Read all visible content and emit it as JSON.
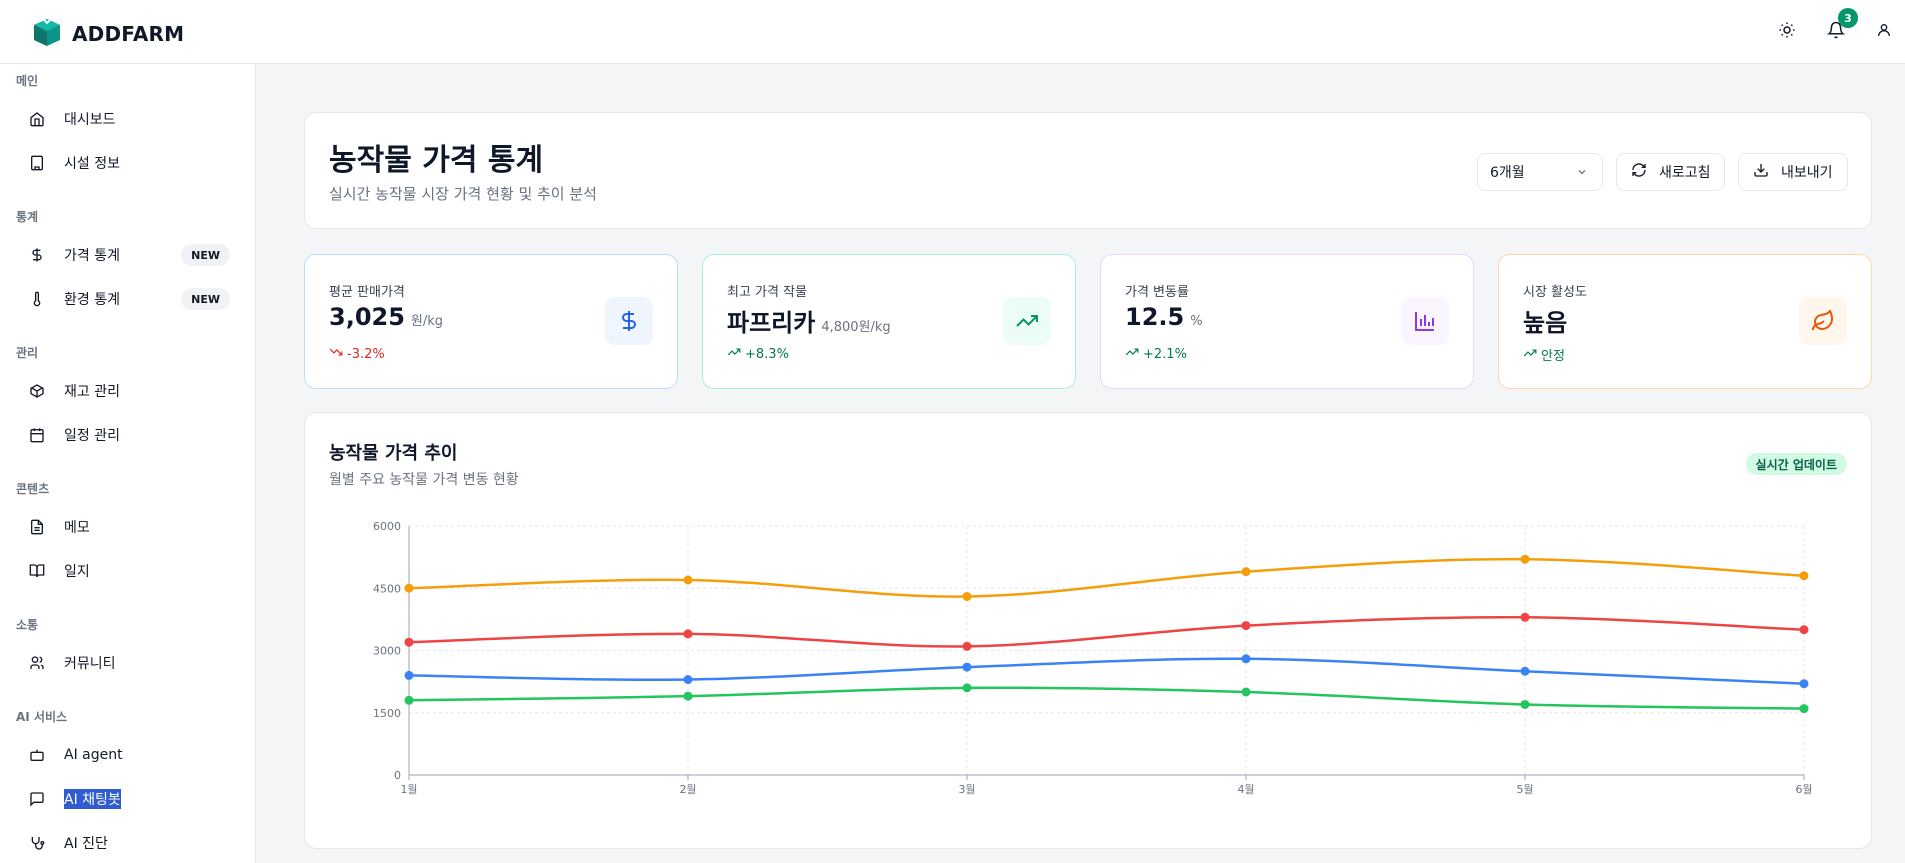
{
  "app": {
    "brand": "ADDFARM",
    "notifications_count": "3",
    "icons": [
      "box-logo-icon",
      "sun-icon",
      "bell-icon",
      "user-icon"
    ]
  },
  "sidebar": {
    "sections": [
      {
        "title": "메인",
        "items": [
          {
            "label": "대시보드",
            "icon": "home-icon"
          },
          {
            "label": "시설 정보",
            "icon": "building-icon"
          }
        ]
      },
      {
        "title": "통계",
        "items": [
          {
            "label": "가격 통계",
            "icon": "dollar-icon",
            "badge": "NEW"
          },
          {
            "label": "환경 통계",
            "icon": "thermometer-icon",
            "badge": "NEW"
          }
        ]
      },
      {
        "title": "관리",
        "items": [
          {
            "label": "재고 관리",
            "icon": "package-icon"
          },
          {
            "label": "일정 관리",
            "icon": "calendar-icon"
          }
        ]
      },
      {
        "title": "콘텐츠",
        "items": [
          {
            "label": "메모",
            "icon": "file-icon"
          },
          {
            "label": "일지",
            "icon": "book-icon"
          }
        ]
      },
      {
        "title": "소통",
        "items": [
          {
            "label": "커뮤니티",
            "icon": "users-icon"
          }
        ]
      },
      {
        "title": "AI 서비스",
        "items": [
          {
            "label": "AI agent",
            "icon": "bot-icon"
          },
          {
            "label": "AI 채팅봇",
            "icon": "chat-icon",
            "selected": true
          },
          {
            "label": "AI 진단",
            "icon": "stethoscope-icon"
          }
        ]
      }
    ]
  },
  "header": {
    "title": "농작물 가격 통계",
    "subtitle": "실시간 농작물 시장 가격 현황 및 추이 분석",
    "period_select": "6개월",
    "refresh_label": "새로고침",
    "export_label": "내보내기"
  },
  "stats": [
    {
      "label": "평균 판매가격",
      "value": "3,025",
      "unit": "원/kg",
      "change": "-3.2%",
      "trend": "down",
      "icon": "dollar-icon",
      "accent": "#2563eb",
      "border": "#bfdbfe",
      "icon_bg": "#eff6ff",
      "change_color": "#dc2626"
    },
    {
      "label": "최고 가격 작물",
      "value": "파프리카",
      "unit": "4,800원/kg",
      "change": "+8.3%",
      "trend": "up",
      "icon": "trending-up-icon",
      "accent": "#059669",
      "border": "#a7f3d0",
      "icon_bg": "#ecfdf5",
      "change_color": "#047857"
    },
    {
      "label": "가격 변동률",
      "value": "12.5",
      "unit": "%",
      "change": "+2.1%",
      "trend": "up",
      "icon": "bar-chart-icon",
      "accent": "#9333ea",
      "border": "#e9d5ff",
      "icon_bg": "#faf5ff",
      "change_color": "#047857"
    },
    {
      "label": "시장 활성도",
      "value": "높음",
      "unit": "",
      "change": "안정",
      "trend": "up",
      "icon": "leaf-icon",
      "accent": "#ea580c",
      "border": "#fed7aa",
      "icon_bg": "#fff7ed",
      "change_color": "#047857"
    }
  ],
  "chart_section": {
    "title": "농작물 가격 추이",
    "subtitle": "월별 주요 농작물 가격 변동 현황",
    "badge": "실시간 업데이트"
  },
  "chart_data": {
    "type": "line",
    "categories": [
      "1월",
      "2월",
      "3월",
      "4월",
      "5월",
      "6월"
    ],
    "ylim": [
      0,
      6000
    ],
    "yticks": [
      0,
      1500,
      3000,
      4500,
      6000
    ],
    "grid": true,
    "series": [
      {
        "color": "#f59e0b",
        "values": [
          4500,
          4700,
          4300,
          4900,
          5200,
          4800
        ]
      },
      {
        "color": "#ef4444",
        "values": [
          3200,
          3400,
          3100,
          3600,
          3800,
          3500
        ]
      },
      {
        "color": "#3b82f6",
        "values": [
          2400,
          2300,
          2600,
          2800,
          2500,
          2200
        ]
      },
      {
        "color": "#22c55e",
        "values": [
          1800,
          1900,
          2100,
          2000,
          1700,
          1600
        ]
      }
    ]
  }
}
